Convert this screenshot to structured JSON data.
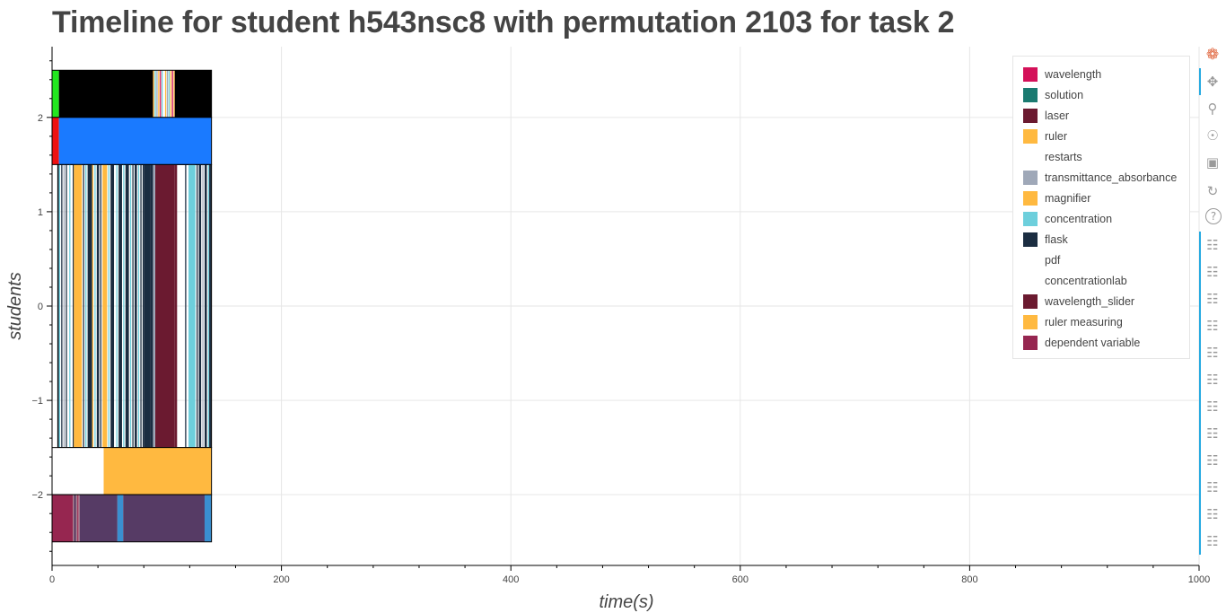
{
  "title": "Timeline for student h543nsc8 with permutation 2103 for task 2",
  "chart_data": {
    "type": "bar",
    "title": "Timeline for student h543nsc8 with permutation 2103 for task 2",
    "xlabel": "time(s)",
    "ylabel": "students",
    "xlim": [
      0,
      1000
    ],
    "ylim": [
      -2.75,
      2.75
    ],
    "xticks": [
      0,
      200,
      400,
      600,
      800,
      1000
    ],
    "yticks": [
      -2,
      -1,
      0,
      1,
      2
    ],
    "xtick_labels": [
      "0",
      "200",
      "400",
      "600",
      "800",
      "1000"
    ],
    "ytick_labels": [
      "−2",
      "−1",
      "0",
      "1",
      "2"
    ],
    "grid": true,
    "legend_position": "top-right",
    "legend": [
      {
        "label": "wavelength",
        "color": "#d41159"
      },
      {
        "label": "solution",
        "color": "#1a7a70"
      },
      {
        "label": "laser",
        "color": "#6b1a30"
      },
      {
        "label": "ruler",
        "color": "#ffb940"
      },
      {
        "label": "restarts",
        "color": "#ffffff"
      },
      {
        "label": "transmittance_absorbance",
        "color": "#9fa8b8"
      },
      {
        "label": "magnifier",
        "color": "#ffb940"
      },
      {
        "label": "concentration",
        "color": "#6dcfdc"
      },
      {
        "label": "flask",
        "color": "#1b2d41"
      },
      {
        "label": "pdf",
        "color": "#ffffff"
      },
      {
        "label": "concentrationlab",
        "color": "#ffffff"
      },
      {
        "label": "wavelength_slider",
        "color": "#6b1a30"
      },
      {
        "label": "ruler measuring",
        "color": "#ffb940"
      },
      {
        "label": "dependent variable",
        "color": "#962650"
      }
    ],
    "rows": [
      {
        "y_range": [
          2.0,
          2.5
        ],
        "segments": [
          {
            "x0": 0,
            "x1": 6,
            "color": "#22e81f"
          },
          {
            "x0": 6,
            "x1": 88,
            "color": "#000000"
          },
          {
            "x0": 88,
            "x1": 89,
            "color": "#ffb940"
          },
          {
            "x0": 89.5,
            "x1": 90.5,
            "color": "#6dcfdc"
          },
          {
            "x0": 91,
            "x1": 92,
            "color": "#9fa8b8"
          },
          {
            "x0": 92.5,
            "x1": 93.5,
            "color": "#ffb940"
          },
          {
            "x0": 94,
            "x1": 95,
            "color": "#d41159"
          },
          {
            "x0": 95.5,
            "x1": 96.5,
            "color": "#6dcfdc"
          },
          {
            "x0": 97,
            "x1": 98,
            "color": "#ffffff"
          },
          {
            "x0": 98.5,
            "x1": 99.5,
            "color": "#ffb940"
          },
          {
            "x0": 100,
            "x1": 101,
            "color": "#9fa8b8"
          },
          {
            "x0": 101.5,
            "x1": 102.5,
            "color": "#6dcfdc"
          },
          {
            "x0": 103,
            "x1": 104,
            "color": "#ffb940"
          },
          {
            "x0": 104.5,
            "x1": 105.5,
            "color": "#d41159"
          },
          {
            "x0": 106,
            "x1": 107,
            "color": "#ffb940"
          },
          {
            "x0": 107,
            "x1": 139,
            "color": "#000000"
          }
        ]
      },
      {
        "y_range": [
          1.5,
          2.0
        ],
        "segments": [
          {
            "x0": 0,
            "x1": 6,
            "color": "#ee1111"
          },
          {
            "x0": 6,
            "x1": 139,
            "color": "#1a7aff"
          }
        ]
      },
      {
        "y_range": [
          -1.5,
          1.5
        ],
        "segments": [
          {
            "x0": 5,
            "x1": 6,
            "color": "#1b2d41"
          },
          {
            "x0": 6,
            "x1": 7,
            "color": "#6dcfdc"
          },
          {
            "x0": 8,
            "x1": 9,
            "color": "#1b2d41"
          },
          {
            "x0": 10,
            "x1": 11,
            "color": "#9fa8b8"
          },
          {
            "x0": 12,
            "x1": 13,
            "color": "#1b2d41"
          },
          {
            "x0": 15,
            "x1": 16,
            "color": "#6dcfdc"
          },
          {
            "x0": 18,
            "x1": 19,
            "color": "#1b2d41"
          },
          {
            "x0": 19,
            "x1": 26,
            "color": "#ffb940"
          },
          {
            "x0": 27,
            "x1": 28,
            "color": "#1b2d41"
          },
          {
            "x0": 29,
            "x1": 30,
            "color": "#6dcfdc"
          },
          {
            "x0": 31,
            "x1": 35,
            "color": "#1b2d41"
          },
          {
            "x0": 35,
            "x1": 36,
            "color": "#ffb940"
          },
          {
            "x0": 37,
            "x1": 38,
            "color": "#6dcfdc"
          },
          {
            "x0": 39,
            "x1": 41,
            "color": "#1b2d41"
          },
          {
            "x0": 42,
            "x1": 43,
            "color": "#1b2d41"
          },
          {
            "x0": 44,
            "x1": 48,
            "color": "#ffb940"
          },
          {
            "x0": 49,
            "x1": 50,
            "color": "#6dcfdc"
          },
          {
            "x0": 51,
            "x1": 54,
            "color": "#1b2d41"
          },
          {
            "x0": 56,
            "x1": 57,
            "color": "#6dcfdc"
          },
          {
            "x0": 58,
            "x1": 61,
            "color": "#1b2d41"
          },
          {
            "x0": 62,
            "x1": 63,
            "color": "#6dcfdc"
          },
          {
            "x0": 64,
            "x1": 67,
            "color": "#1b2d41"
          },
          {
            "x0": 68,
            "x1": 69,
            "color": "#6dcfdc"
          },
          {
            "x0": 70,
            "x1": 71,
            "color": "#1b2d41"
          },
          {
            "x0": 72,
            "x1": 74,
            "color": "#1b2d41"
          },
          {
            "x0": 75,
            "x1": 76,
            "color": "#6dcfdc"
          },
          {
            "x0": 77,
            "x1": 78,
            "color": "#1b2d41"
          },
          {
            "x0": 79,
            "x1": 80,
            "color": "#1b2d41"
          },
          {
            "x0": 80,
            "x1": 86,
            "color": "#1b2d41"
          },
          {
            "x0": 86,
            "x1": 88,
            "color": "#1b2d41"
          },
          {
            "x0": 88,
            "x1": 90,
            "color": "#9fa8b8"
          },
          {
            "x0": 90,
            "x1": 107,
            "color": "#6b1a30"
          },
          {
            "x0": 107,
            "x1": 109,
            "color": "#6b1a30"
          },
          {
            "x0": 116,
            "x1": 117,
            "color": "#1b2d41"
          },
          {
            "x0": 119,
            "x1": 125,
            "color": "#6dcfdc"
          },
          {
            "x0": 126,
            "x1": 127,
            "color": "#1b2d41"
          },
          {
            "x0": 128,
            "x1": 130,
            "color": "#1b2d41"
          },
          {
            "x0": 131,
            "x1": 132,
            "color": "#9fa8b8"
          },
          {
            "x0": 133,
            "x1": 135,
            "color": "#1b2d41"
          },
          {
            "x0": 136,
            "x1": 137,
            "color": "#6dcfdc"
          },
          {
            "x0": 137,
            "x1": 139,
            "color": "#1b2d41"
          }
        ]
      },
      {
        "y_range": [
          -2.0,
          -1.5
        ],
        "segments": [
          {
            "x0": 0,
            "x1": 45,
            "color": "#ffffff"
          },
          {
            "x0": 45,
            "x1": 139,
            "color": "#ffb940"
          }
        ]
      },
      {
        "y_range": [
          -2.5,
          -2.0
        ],
        "segments": [
          {
            "x0": 0,
            "x1": 18,
            "color": "#962650"
          },
          {
            "x0": 18,
            "x1": 19,
            "color": "#b08090"
          },
          {
            "x0": 19,
            "x1": 21,
            "color": "#5a3a60"
          },
          {
            "x0": 21,
            "x1": 22,
            "color": "#b08090"
          },
          {
            "x0": 22,
            "x1": 23,
            "color": "#962650"
          },
          {
            "x0": 23,
            "x1": 24,
            "color": "#b08090"
          },
          {
            "x0": 24,
            "x1": 57,
            "color": "#563b65"
          },
          {
            "x0": 57,
            "x1": 62,
            "color": "#3a8fd0"
          },
          {
            "x0": 62,
            "x1": 133,
            "color": "#563b65"
          },
          {
            "x0": 133,
            "x1": 139,
            "color": "#3a8fd0"
          }
        ]
      }
    ]
  },
  "toolbar": {
    "logo_icon": "bokeh-logo-icon",
    "tools": [
      "pan-icon",
      "box-zoom-icon",
      "wheel-zoom-icon",
      "save-icon",
      "reset-icon",
      "help-icon",
      "hover-icon"
    ]
  }
}
